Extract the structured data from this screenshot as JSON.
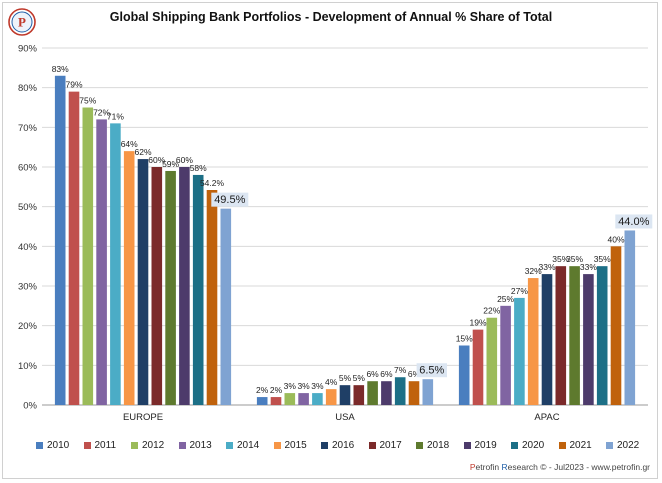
{
  "title": "Global Shipping Bank Portfolios - Development of Annual % Share of Total",
  "credit": {
    "brand_p": "P",
    "brand_rest": "etrofin ",
    "brand_r": "R",
    "rest": "esearch © - Jul2023 - www.petrofin.gr"
  },
  "logo": {
    "icon": "petrofin-logo-icon",
    "letter": "P"
  },
  "chart_data": {
    "type": "bar",
    "categories": [
      "EUROPE",
      "USA",
      "APAC"
    ],
    "ylim": [
      0,
      90
    ],
    "ytick_step": 10,
    "ytick_suffix": "%",
    "grid": true,
    "legend_position": "bottom",
    "series": [
      {
        "name": "2010",
        "color": "#4a7ebf",
        "values": [
          83,
          2,
          15
        ],
        "labels": [
          "83%",
          "2%",
          "15%"
        ]
      },
      {
        "name": "2011",
        "color": "#c0504d",
        "values": [
          79,
          2,
          19
        ],
        "labels": [
          "79%",
          "2%",
          "19%"
        ]
      },
      {
        "name": "2012",
        "color": "#9bbb59",
        "values": [
          75,
          3,
          22
        ],
        "labels": [
          "75%",
          "3%",
          "22%"
        ]
      },
      {
        "name": "2013",
        "color": "#8064a2",
        "values": [
          72,
          3,
          25
        ],
        "labels": [
          "72%",
          "3%",
          "25%"
        ]
      },
      {
        "name": "2014",
        "color": "#4bacc6",
        "values": [
          71,
          3,
          27
        ],
        "labels": [
          "71%",
          "3%",
          "27%"
        ]
      },
      {
        "name": "2015",
        "color": "#f79646",
        "values": [
          64,
          4,
          32
        ],
        "labels": [
          "64%",
          "4%",
          "32%"
        ]
      },
      {
        "name": "2016",
        "color": "#1f3f66",
        "values": [
          62,
          5,
          33
        ],
        "labels": [
          "62%",
          "5%",
          "33%"
        ]
      },
      {
        "name": "2017",
        "color": "#7b2a2a",
        "values": [
          60,
          5,
          35
        ],
        "labels": [
          "60%",
          "5%",
          "35%"
        ]
      },
      {
        "name": "2018",
        "color": "#5e7a2e",
        "values": [
          59,
          6,
          35
        ],
        "labels": [
          "59%",
          "6%",
          "35%"
        ]
      },
      {
        "name": "2019",
        "color": "#4d3b6b",
        "values": [
          60,
          6,
          33
        ],
        "labels": [
          "60%",
          "6%",
          "33%"
        ]
      },
      {
        "name": "2020",
        "color": "#1c6f86",
        "values": [
          58,
          7,
          35
        ],
        "labels": [
          "58%",
          "7%",
          "35%"
        ]
      },
      {
        "name": "2021",
        "color": "#c0620c",
        "values": [
          54.2,
          6,
          40
        ],
        "labels": [
          "54.2%",
          "6%",
          "40%"
        ]
      },
      {
        "name": "2022",
        "color": "#7fa3d2",
        "values": [
          49.5,
          6.5,
          44.0
        ],
        "labels": [
          "49.5%",
          "6.5%",
          "44.0%"
        ],
        "highlight": true
      }
    ]
  }
}
